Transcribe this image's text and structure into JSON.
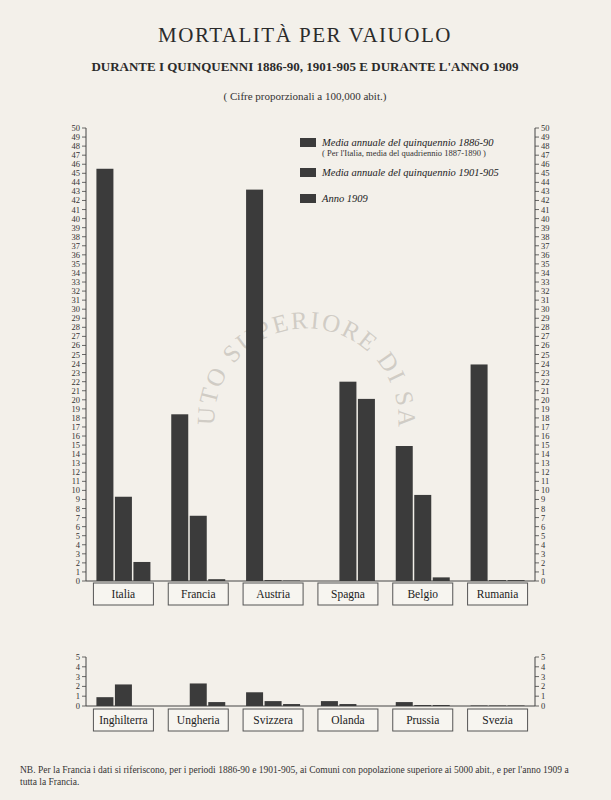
{
  "chart_data": [
    {
      "type": "bar",
      "title": "MORTALITÀ PER VAIUOLO",
      "subtitle": "DURANTE I QUINQUENNI 1886-90,  1901-905 E DURANTE L'ANNO 1909",
      "annotations": [
        "( Cifre proporzionali a 100,000 abit.)",
        "( Per l'Italia, media del quadriennio 1887-1890 )",
        "NB. Per la Francia i dati si riferiscono, per i periodi 1886-90 e 1901-905, ai Comuni con popolazione superiore ai 5000 abit., e per l'anno 1909 a tutta la Francia.",
        "ISTITUTO SUPERIORE DI SANITÀ"
      ],
      "categories": [
        "Italia",
        "Francia",
        "Austria",
        "Spagna",
        "Belgio",
        "Rumania"
      ],
      "series": [
        {
          "name": "Media annuale del quinquennio 1886-90",
          "color": "#3b3b3b",
          "values": [
            45.5,
            18.4,
            43.2,
            null,
            14.9,
            23.9
          ]
        },
        {
          "name": "Media annuale del quinquennio 1901-905",
          "color": "#3b3b3b",
          "values": [
            9.3,
            7.2,
            0.1,
            22.0,
            9.5,
            0.1
          ]
        },
        {
          "name": "Anno 1909",
          "color": "#3b3b3b",
          "values": [
            2.1,
            0.2,
            0.05,
            20.1,
            0.4,
            0.1
          ]
        }
      ],
      "ylim": [
        0,
        50
      ],
      "yticks": [
        0,
        1,
        2,
        3,
        4,
        5,
        6,
        7,
        8,
        9,
        10,
        11,
        12,
        13,
        14,
        15,
        16,
        17,
        18,
        19,
        20,
        21,
        22,
        23,
        24,
        25,
        26,
        27,
        28,
        29,
        30,
        31,
        32,
        33,
        34,
        35,
        36,
        37,
        38,
        39,
        40,
        41,
        42,
        43,
        44,
        45,
        46,
        47,
        48,
        49,
        50
      ],
      "grid": false,
      "legend": "top-right"
    },
    {
      "type": "bar",
      "categories": [
        "Inghilterra",
        "Ungheria",
        "Svizzera",
        "Olanda",
        "Prussia",
        "Svezia"
      ],
      "series": [
        {
          "name": "Media annuale del quinquennio 1886-90",
          "color": "#3b3b3b",
          "values": [
            0.9,
            null,
            1.4,
            0.5,
            0.4,
            0.05
          ]
        },
        {
          "name": "Media annuale del quinquennio 1901-905",
          "color": "#3b3b3b",
          "values": [
            2.2,
            2.3,
            0.5,
            0.2,
            0.1,
            0.05
          ]
        },
        {
          "name": "Anno 1909",
          "color": "#3b3b3b",
          "values": [
            null,
            0.4,
            0.2,
            null,
            0.1,
            0.05
          ]
        }
      ],
      "ylim": [
        0,
        5
      ],
      "yticks": [
        0,
        1,
        2,
        3,
        4,
        5
      ],
      "grid": false
    }
  ]
}
